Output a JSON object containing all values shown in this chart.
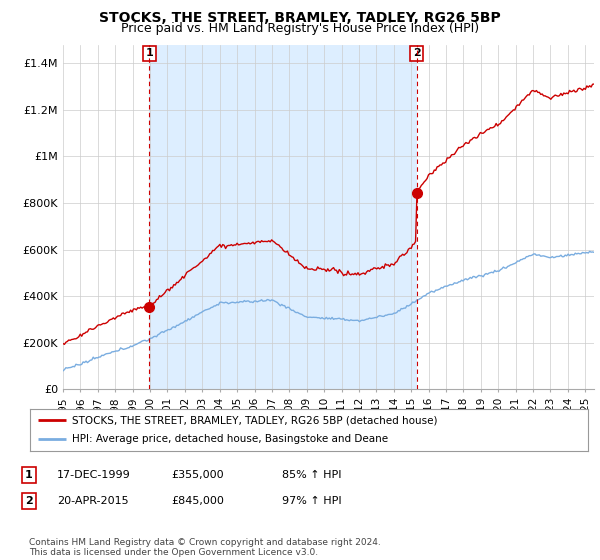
{
  "title": "STOCKS, THE STREET, BRAMLEY, TADLEY, RG26 5BP",
  "subtitle": "Price paid vs. HM Land Registry's House Price Index (HPI)",
  "ylabel_ticks": [
    "£0",
    "£200K",
    "£400K",
    "£600K",
    "£800K",
    "£1M",
    "£1.2M",
    "£1.4M"
  ],
  "ytick_vals": [
    0,
    200000,
    400000,
    600000,
    800000,
    1000000,
    1200000,
    1400000
  ],
  "ylim": [
    0,
    1480000
  ],
  "xlim_start": 1995.0,
  "xlim_end": 2025.5,
  "sale1_x": 1999.96,
  "sale1_y": 355000,
  "sale1_label": "1",
  "sale2_x": 2015.31,
  "sale2_y": 845000,
  "sale2_label": "2",
  "legend_line1": "STOCKS, THE STREET, BRAMLEY, TADLEY, RG26 5BP (detached house)",
  "legend_line2": "HPI: Average price, detached house, Basingstoke and Deane",
  "table_row1": [
    "1",
    "17-DEC-1999",
    "£355,000",
    "85% ↑ HPI"
  ],
  "table_row2": [
    "2",
    "20-APR-2015",
    "£845,000",
    "97% ↑ HPI"
  ],
  "footer": "Contains HM Land Registry data © Crown copyright and database right 2024.\nThis data is licensed under the Open Government Licence v3.0.",
  "red_color": "#cc0000",
  "blue_color": "#7aade0",
  "shade_color": "#ddeeff",
  "grid_color": "#cccccc",
  "background_color": "#ffffff",
  "title_fontsize": 10,
  "subtitle_fontsize": 9
}
